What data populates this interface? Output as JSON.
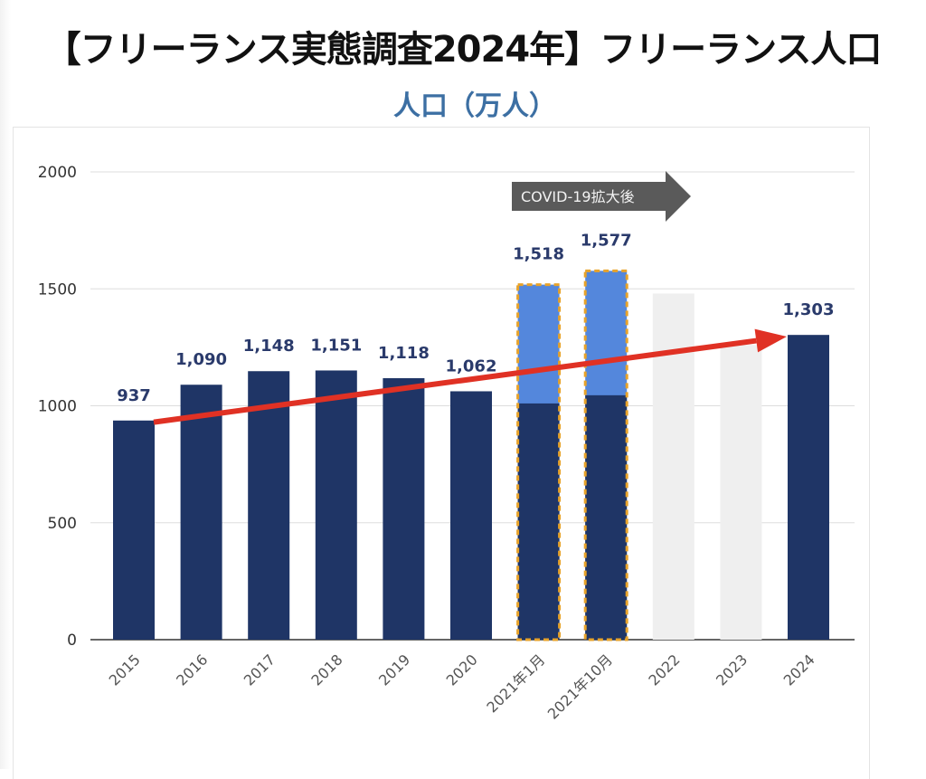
{
  "chart_data": {
    "type": "bar",
    "title": "【フリーランス実態調査2024年】フリーランス人口",
    "subtitle": "人口（万人）",
    "ylim": [
      0,
      2000
    ],
    "yticks": [
      "0",
      "500",
      "1000",
      "1500",
      "2000"
    ],
    "categories": [
      "2015",
      "2016",
      "2017",
      "2018",
      "2019",
      "2020",
      "2021年1月",
      "2021年10月",
      "2022",
      "2023",
      "2024"
    ],
    "values": [
      937,
      1090,
      1148,
      1151,
      1118,
      1062,
      1518,
      1577,
      1480,
      1260,
      1303
    ],
    "dark_portion": [
      937,
      1090,
      1148,
      1151,
      1118,
      1062,
      1010,
      1045,
      null,
      null,
      1303
    ],
    "highlighted": [
      false,
      false,
      false,
      false,
      false,
      false,
      true,
      true,
      false,
      false,
      false
    ],
    "ghost": [
      false,
      false,
      false,
      false,
      false,
      false,
      false,
      false,
      true,
      true,
      false
    ],
    "labels": [
      "937",
      "1,090",
      "1,148",
      "1,151",
      "1,118",
      "1,062",
      "1,518",
      "1,577",
      "",
      "",
      "1,303"
    ],
    "annotation": "COVID-19拡大後",
    "trend_arrow": {
      "from_category": "2015",
      "from_value": 930,
      "to_category": "2024",
      "to_value": 1296
    },
    "grid": true,
    "colors": {
      "dark": "#1f3566",
      "light": "#5487dc",
      "ghost": "#efefef",
      "dash": "#e8a32a",
      "arrow": "#e03124",
      "label": "#2a3a6b",
      "annotation": "#5a5a5a"
    }
  }
}
